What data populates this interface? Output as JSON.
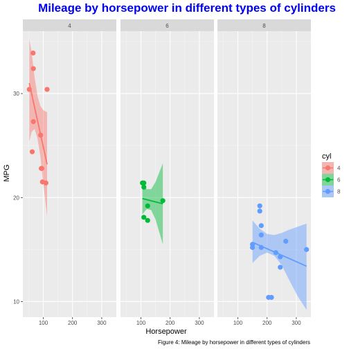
{
  "chart_data": {
    "type": "scatter",
    "title": "Mileage by horsepower in different types of cylinders",
    "title_color": "#0000ee",
    "xlabel": "Horsepower",
    "ylabel": "MPG",
    "caption": "Figure 4: Mileage by horsepower in different types of cylinders",
    "xlim": [
      30,
      350
    ],
    "ylim": [
      8.5,
      36
    ],
    "x_ticks": [
      100,
      200,
      300
    ],
    "y_ticks": [
      10,
      20,
      30
    ],
    "grid": true,
    "legend": {
      "title": "cyl",
      "position": "right"
    },
    "panels": [
      {
        "label": "4",
        "color": "#f8766d",
        "points": [
          [
            93,
            22.8
          ],
          [
            62,
            24.4
          ],
          [
            95,
            22.8
          ],
          [
            66,
            32.4
          ],
          [
            52,
            30.4
          ],
          [
            65,
            33.9
          ],
          [
            97,
            21.5
          ],
          [
            66,
            27.3
          ],
          [
            91,
            26
          ],
          [
            113,
            30.4
          ],
          [
            109,
            21.4
          ]
        ],
        "fit": {
          "x0": 52,
          "y0": 31.0,
          "x1": 113,
          "y1": 23.2
        },
        "band_lower": [
          [
            52,
            25.4
          ],
          [
            60,
            26.3
          ],
          [
            70,
            26.6
          ],
          [
            80,
            25.7
          ],
          [
            90,
            24.0
          ],
          [
            100,
            21.3
          ],
          [
            113,
            18.2
          ]
        ],
        "band_upper": [
          [
            52,
            35.2
          ],
          [
            60,
            34.0
          ],
          [
            70,
            31.6
          ],
          [
            80,
            29.8
          ],
          [
            90,
            28.8
          ],
          [
            100,
            28.4
          ],
          [
            113,
            28.2
          ]
        ]
      },
      {
        "label": "6",
        "color": "#00ba38",
        "points": [
          [
            110,
            21
          ],
          [
            110,
            21.4
          ],
          [
            110,
            18.1
          ],
          [
            105,
            21.4
          ],
          [
            123,
            19.2
          ],
          [
            123,
            17.8
          ],
          [
            175,
            19.7
          ]
        ],
        "fit": {
          "x0": 105,
          "y0": 19.9,
          "x1": 175,
          "y1": 19.4
        },
        "band_lower": [
          [
            105,
            18.4
          ],
          [
            120,
            18.9
          ],
          [
            135,
            18.8
          ],
          [
            150,
            17.9
          ],
          [
            175,
            15.5
          ]
        ],
        "band_upper": [
          [
            105,
            21.4
          ],
          [
            120,
            20.8
          ],
          [
            135,
            20.8
          ],
          [
            150,
            21.5
          ],
          [
            175,
            23.3
          ]
        ]
      },
      {
        "label": "8",
        "color": "#619cff",
        "points": [
          [
            175,
            18.7
          ],
          [
            245,
            14.3
          ],
          [
            180,
            16.4
          ],
          [
            180,
            17.3
          ],
          [
            180,
            15.2
          ],
          [
            205,
            10.4
          ],
          [
            215,
            10.4
          ],
          [
            230,
            14.7
          ],
          [
            150,
            15.5
          ],
          [
            150,
            15.2
          ],
          [
            245,
            13.3
          ],
          [
            175,
            19.2
          ],
          [
            264,
            15.8
          ],
          [
            335,
            15
          ]
        ],
        "fit": {
          "x0": 150,
          "y0": 15.7,
          "x1": 335,
          "y1": 13.4
        },
        "band_lower": [
          [
            150,
            13.7
          ],
          [
            175,
            14.4
          ],
          [
            200,
            14.7
          ],
          [
            225,
            14.4
          ],
          [
            250,
            13.5
          ],
          [
            275,
            12.1
          ],
          [
            305,
            10.5
          ],
          [
            335,
            9.2
          ]
        ],
        "band_upper": [
          [
            150,
            17.8
          ],
          [
            175,
            17.0
          ],
          [
            200,
            16.5
          ],
          [
            225,
            16.4
          ],
          [
            250,
            16.6
          ],
          [
            275,
            16.9
          ],
          [
            305,
            17.2
          ],
          [
            335,
            17.5
          ]
        ]
      }
    ]
  }
}
